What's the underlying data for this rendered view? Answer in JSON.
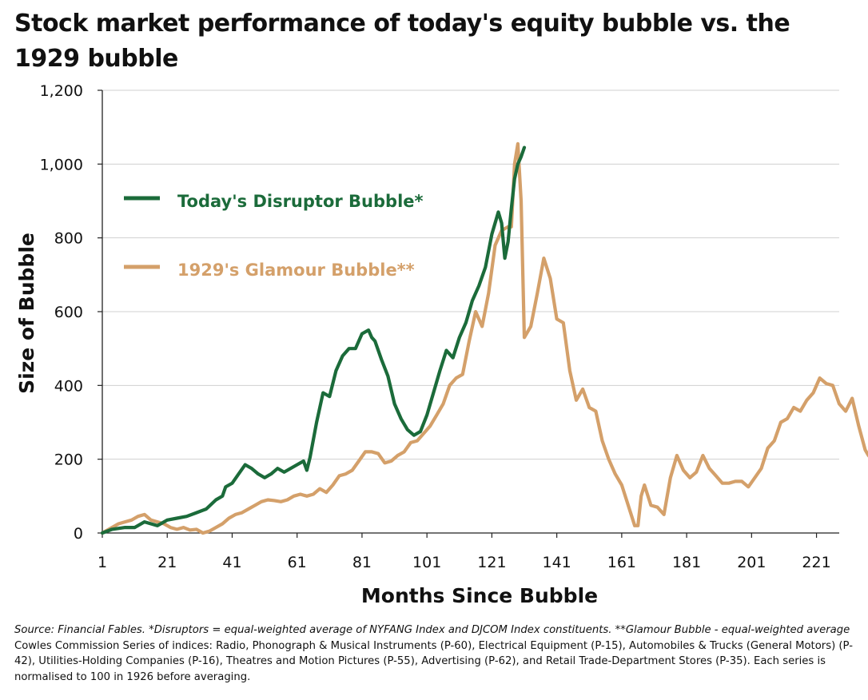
{
  "title": "Stock market performance of today's equity bubble vs. the 1929 bubble",
  "source": {
    "part1_italic": "Source: Financial Fables.  *Disruptors = equal-weighted average of NYFANG Index and DJCOM Index constituents. **Glamour Bubble - equal-weighted average",
    "part2": " Cowles Commission Series of indices: Radio, Phonograph & Musical Instruments (P-60), Electrical Equipment (P-15), Automobiles & Trucks (General Motors) (P-42), Utilities-Holding Companies (P-16), Theatres and Motion Pictures (P-55), Advertising (P-62), and Retail Trade-Department Stores (P-35). Each series is normalised to 100 in 1926 before averaging."
  },
  "colors": {
    "disruptor": "#1b6b3a",
    "glamour": "#d4a06a",
    "grid": "#d0d0d0"
  },
  "chart_data": {
    "type": "line",
    "xlabel": "Months Since Bubble",
    "ylabel": "Size of Bubble",
    "xlim": [
      1,
      228
    ],
    "ylim": [
      0,
      1200
    ],
    "xticks": [
      1,
      21,
      41,
      61,
      81,
      101,
      121,
      141,
      161,
      181,
      201,
      221
    ],
    "yticks": [
      0,
      200,
      400,
      600,
      800,
      1000,
      1200
    ],
    "ytick_labels": [
      "0",
      "200",
      "400",
      "600",
      "800",
      "1,000",
      "1,200"
    ],
    "grid": "horizontal",
    "legend_position": "upper-left",
    "series": [
      {
        "name": "Today's Disruptor Bubble*",
        "color": "#1b6b3a",
        "points": [
          [
            1,
            0
          ],
          [
            4,
            10
          ],
          [
            8,
            15
          ],
          [
            11,
            15
          ],
          [
            14,
            30
          ],
          [
            16,
            25
          ],
          [
            18,
            20
          ],
          [
            21,
            35
          ],
          [
            24,
            40
          ],
          [
            27,
            45
          ],
          [
            30,
            55
          ],
          [
            33,
            65
          ],
          [
            36,
            90
          ],
          [
            38,
            100
          ],
          [
            39,
            125
          ],
          [
            41,
            135
          ],
          [
            43,
            160
          ],
          [
            45,
            185
          ],
          [
            47,
            175
          ],
          [
            49,
            160
          ],
          [
            51,
            150
          ],
          [
            53,
            160
          ],
          [
            55,
            175
          ],
          [
            57,
            165
          ],
          [
            59,
            175
          ],
          [
            61,
            185
          ],
          [
            63,
            195
          ],
          [
            64,
            170
          ],
          [
            65,
            205
          ],
          [
            67,
            300
          ],
          [
            69,
            380
          ],
          [
            71,
            370
          ],
          [
            73,
            440
          ],
          [
            75,
            480
          ],
          [
            77,
            500
          ],
          [
            79,
            500
          ],
          [
            81,
            540
          ],
          [
            83,
            550
          ],
          [
            84,
            530
          ],
          [
            85,
            520
          ],
          [
            87,
            470
          ],
          [
            89,
            425
          ],
          [
            91,
            350
          ],
          [
            93,
            310
          ],
          [
            95,
            280
          ],
          [
            97,
            265
          ],
          [
            99,
            275
          ],
          [
            101,
            320
          ],
          [
            103,
            380
          ],
          [
            105,
            440
          ],
          [
            107,
            495
          ],
          [
            109,
            475
          ],
          [
            111,
            530
          ],
          [
            113,
            570
          ],
          [
            115,
            630
          ],
          [
            117,
            670
          ],
          [
            119,
            720
          ],
          [
            121,
            810
          ],
          [
            123,
            870
          ],
          [
            124,
            840
          ],
          [
            125,
            745
          ],
          [
            126,
            790
          ],
          [
            127,
            880
          ],
          [
            128,
            960
          ],
          [
            129,
            1000
          ],
          [
            130,
            1020
          ],
          [
            131,
            1045
          ]
        ]
      },
      {
        "name": "1929's Glamour Bubble**",
        "color": "#d4a06a",
        "points": [
          [
            1,
            0
          ],
          [
            4,
            15
          ],
          [
            6,
            25
          ],
          [
            8,
            30
          ],
          [
            10,
            35
          ],
          [
            12,
            45
          ],
          [
            14,
            50
          ],
          [
            16,
            35
          ],
          [
            18,
            30
          ],
          [
            20,
            25
          ],
          [
            22,
            15
          ],
          [
            24,
            10
          ],
          [
            26,
            15
          ],
          [
            28,
            8
          ],
          [
            30,
            10
          ],
          [
            32,
            0
          ],
          [
            34,
            5
          ],
          [
            36,
            15
          ],
          [
            38,
            25
          ],
          [
            40,
            40
          ],
          [
            42,
            50
          ],
          [
            44,
            55
          ],
          [
            46,
            65
          ],
          [
            48,
            75
          ],
          [
            50,
            85
          ],
          [
            52,
            90
          ],
          [
            54,
            88
          ],
          [
            56,
            85
          ],
          [
            58,
            90
          ],
          [
            60,
            100
          ],
          [
            62,
            105
          ],
          [
            64,
            100
          ],
          [
            66,
            105
          ],
          [
            68,
            120
          ],
          [
            70,
            110
          ],
          [
            72,
            130
          ],
          [
            74,
            155
          ],
          [
            76,
            160
          ],
          [
            78,
            170
          ],
          [
            80,
            195
          ],
          [
            82,
            220
          ],
          [
            84,
            220
          ],
          [
            86,
            215
          ],
          [
            88,
            190
          ],
          [
            90,
            195
          ],
          [
            92,
            210
          ],
          [
            94,
            220
          ],
          [
            96,
            245
          ],
          [
            98,
            250
          ],
          [
            100,
            270
          ],
          [
            102,
            290
          ],
          [
            104,
            320
          ],
          [
            106,
            350
          ],
          [
            108,
            400
          ],
          [
            110,
            420
          ],
          [
            112,
            430
          ],
          [
            114,
            520
          ],
          [
            116,
            600
          ],
          [
            118,
            560
          ],
          [
            120,
            650
          ],
          [
            122,
            780
          ],
          [
            124,
            820
          ],
          [
            126,
            830
          ],
          [
            127,
            830
          ],
          [
            128,
            1000
          ],
          [
            129,
            1055
          ],
          [
            130,
            900
          ],
          [
            131,
            530
          ],
          [
            133,
            560
          ],
          [
            135,
            650
          ],
          [
            137,
            745
          ],
          [
            139,
            690
          ],
          [
            141,
            580
          ],
          [
            143,
            570
          ],
          [
            145,
            440
          ],
          [
            147,
            360
          ],
          [
            149,
            390
          ],
          [
            151,
            340
          ],
          [
            153,
            330
          ],
          [
            155,
            250
          ],
          [
            157,
            200
          ],
          [
            159,
            160
          ],
          [
            161,
            130
          ],
          [
            163,
            75
          ],
          [
            165,
            20
          ],
          [
            166,
            20
          ],
          [
            167,
            100
          ],
          [
            168,
            130
          ],
          [
            170,
            75
          ],
          [
            172,
            70
          ],
          [
            174,
            50
          ],
          [
            176,
            150
          ],
          [
            178,
            210
          ],
          [
            180,
            170
          ],
          [
            182,
            150
          ],
          [
            184,
            165
          ],
          [
            186,
            210
          ],
          [
            188,
            175
          ],
          [
            190,
            155
          ],
          [
            192,
            135
          ],
          [
            194,
            135
          ],
          [
            196,
            140
          ],
          [
            198,
            140
          ],
          [
            200,
            125
          ],
          [
            202,
            150
          ],
          [
            204,
            175
          ],
          [
            206,
            230
          ],
          [
            208,
            250
          ],
          [
            210,
            300
          ],
          [
            212,
            310
          ],
          [
            214,
            340
          ],
          [
            216,
            330
          ],
          [
            218,
            360
          ],
          [
            220,
            380
          ],
          [
            222,
            420
          ],
          [
            224,
            405
          ],
          [
            226,
            400
          ],
          [
            228,
            350
          ],
          [
            230,
            330
          ],
          [
            232,
            365
          ],
          [
            234,
            290
          ],
          [
            236,
            225
          ],
          [
            237,
            210
          ],
          [
            238,
            200
          ]
        ]
      }
    ]
  }
}
